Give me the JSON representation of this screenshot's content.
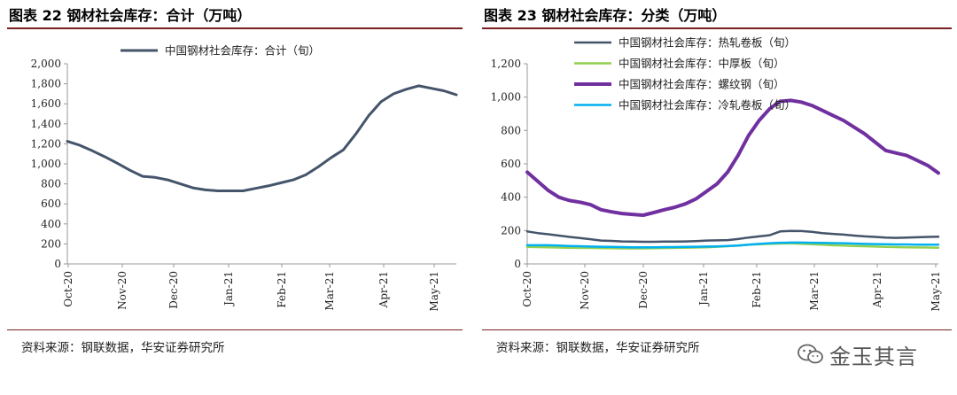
{
  "charts": [
    {
      "figure_title": "图表 22  钢材社会库存：合计（万吨）",
      "source": "资料来源：钢联数据，华安证券研究所"
    },
    {
      "figure_title": "图表 23  钢材社会库存：分类（万吨）",
      "source": "资料来源：钢联数据，华安证券研究所"
    }
  ],
  "watermark": {
    "text": "金玉其言",
    "icon": "wechat-icon"
  },
  "colors": {
    "accent_rule": "#7a1f1f",
    "total": "#44546a",
    "hot_rolled": "#44546a",
    "medium_plate": "#92d050",
    "rebar": "#7030a0",
    "cold_rolled": "#00b0f0",
    "axis": "#999999"
  },
  "chart_data": [
    {
      "type": "line",
      "title": "钢材社会库存：合计（万吨）",
      "x_tick_labels": [
        "Oct-20",
        "Nov-20",
        "Dec-20",
        "Jan-21",
        "Feb-21",
        "Mar-21",
        "Apr-21",
        "May-21"
      ],
      "x_range": [
        0,
        31
      ],
      "ylim": [
        0,
        2000
      ],
      "y_ticks": [
        0,
        200,
        400,
        600,
        800,
        1000,
        1200,
        1400,
        1600,
        1800,
        2000
      ],
      "legend_position": "top-center",
      "series": [
        {
          "name": "中国钢材社会库存：合计（旬）",
          "color": "#44546a",
          "x": [
            0,
            1,
            2,
            3,
            4,
            5,
            6,
            7,
            8,
            9,
            10,
            11,
            12,
            13,
            14,
            15,
            16,
            17,
            18,
            19,
            20,
            21,
            22,
            23,
            24,
            25,
            26,
            27,
            28,
            29,
            30,
            31
          ],
          "values": [
            1225,
            1185,
            1130,
            1070,
            1005,
            935,
            875,
            865,
            840,
            800,
            760,
            740,
            730,
            730,
            730,
            755,
            780,
            810,
            840,
            890,
            970,
            1060,
            1140,
            1300,
            1480,
            1620,
            1700,
            1745,
            1780,
            1755,
            1730,
            1690
          ]
        }
      ]
    },
    {
      "type": "line",
      "title": "钢材社会库存：分类（万吨）",
      "x_tick_labels": [
        "Oct-20",
        "Nov-20",
        "Dec-20",
        "Jan-21",
        "Feb-21",
        "Mar-21",
        "Apr-21",
        "May-21"
      ],
      "x_range": [
        0,
        31
      ],
      "ylim": [
        0,
        1200
      ],
      "y_ticks": [
        0,
        200,
        400,
        600,
        800,
        1000,
        1200
      ],
      "legend_position": "top-center",
      "series": [
        {
          "name": "中国钢材社会库存：热轧卷板（旬）",
          "color": "#44546a",
          "width": 2.5,
          "values": [
            195,
            185,
            178,
            170,
            162,
            155,
            148,
            140,
            138,
            135,
            134,
            133,
            133,
            134,
            134,
            135,
            137,
            140,
            141,
            143,
            149,
            158,
            165,
            172,
            195,
            198,
            197,
            193,
            185,
            180,
            176,
            170,
            165,
            162,
            158,
            156,
            158,
            160,
            162,
            163
          ]
        },
        {
          "name": "中国钢材社会库存：中厚板（旬）",
          "color": "#92d050",
          "width": 2.5,
          "values": [
            102,
            101,
            100,
            98,
            97,
            96,
            96,
            95,
            94,
            93,
            93,
            93,
            94,
            95,
            96,
            97,
            98,
            100,
            103,
            106,
            110,
            115,
            118,
            120,
            122,
            123,
            121,
            118,
            115,
            112,
            110,
            108,
            106,
            104,
            102,
            101,
            100,
            99,
            98,
            97
          ]
        },
        {
          "name": "中国钢材社会库存：螺纹钢（旬）",
          "color": "#7030a0",
          "width": 4,
          "values": [
            550,
            495,
            440,
            400,
            380,
            370,
            355,
            325,
            312,
            302,
            297,
            292,
            308,
            325,
            340,
            360,
            390,
            435,
            480,
            550,
            650,
            770,
            860,
            930,
            975,
            980,
            970,
            950,
            920,
            890,
            860,
            820,
            780,
            730,
            680,
            665,
            650,
            620,
            590,
            545
          ]
        },
        {
          "name": "中国钢材社会库存：冷轧卷板（旬）",
          "color": "#00b0f0",
          "width": 2.5,
          "values": [
            112,
            112,
            112,
            110,
            108,
            106,
            104,
            103,
            102,
            101,
            100,
            100,
            100,
            101,
            101,
            102,
            103,
            104,
            105,
            107,
            110,
            115,
            120,
            124,
            127,
            128,
            128,
            127,
            126,
            125,
            124,
            122,
            120,
            119,
            118,
            117,
            117,
            116,
            116,
            115
          ]
        }
      ]
    }
  ]
}
